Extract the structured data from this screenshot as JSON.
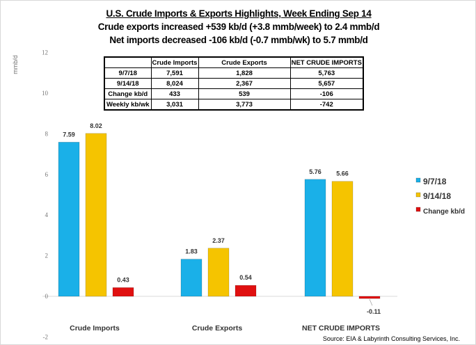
{
  "titles": {
    "main": "U.S. Crude Imports & Exports Highlights, Week Ending Sep 14",
    "line2": "Crude exports increased +539 kb/d (+3.8 mmb/week) to 2.4 mmb/d",
    "line3": "Net imports decreased -106 kb/d (-0.7 mmb/wk) to 5.7 mmb/d"
  },
  "table": {
    "headers": [
      "",
      "Crude Imports",
      "Crude Exports",
      "NET CRUDE IMPORTS"
    ],
    "rows": [
      [
        "9/7/18",
        "7,591",
        "1,828",
        "5,763"
      ],
      [
        "9/14/18",
        "8,024",
        "2,367",
        "5,657"
      ],
      [
        "Change kb/d",
        "433",
        "539",
        "-106"
      ],
      [
        "Weekly kb/wk",
        "3,031",
        "3,773",
        "-742"
      ]
    ]
  },
  "source": "Source: EIA & Labyrinth Consulting Services, Inc.",
  "chart_data": {
    "type": "bar",
    "title": "U.S. Crude Imports & Exports Highlights, Week Ending Sep 14",
    "ylabel": "mmb/d",
    "xlabel": "",
    "ylim": [
      -2,
      12
    ],
    "yticks": [
      -2,
      0,
      2,
      4,
      6,
      8,
      10,
      12
    ],
    "ytick_labels": [
      "-2",
      "0",
      "2",
      "4",
      "6",
      "8",
      "10",
      "12"
    ],
    "grid": false,
    "legend_position": "right",
    "categories": [
      "Crude Imports",
      "Crude Exports",
      "NET CRUDE IMPORTS"
    ],
    "series": [
      {
        "name": "9/7/18",
        "color": "#1ab0e8",
        "values": [
          7.59,
          1.83,
          5.76
        ],
        "labels": [
          "7.59",
          "1.83",
          "5.76"
        ]
      },
      {
        "name": "9/14/18",
        "color": "#f5c400",
        "values": [
          8.02,
          2.37,
          5.66
        ],
        "labels": [
          "8.02",
          "2.37",
          "5.66"
        ]
      },
      {
        "name": "Change kb/d",
        "color": "#e01010",
        "values": [
          0.43,
          0.54,
          -0.11
        ],
        "labels": [
          "0.43",
          "0.54",
          "-0.11"
        ]
      }
    ]
  }
}
